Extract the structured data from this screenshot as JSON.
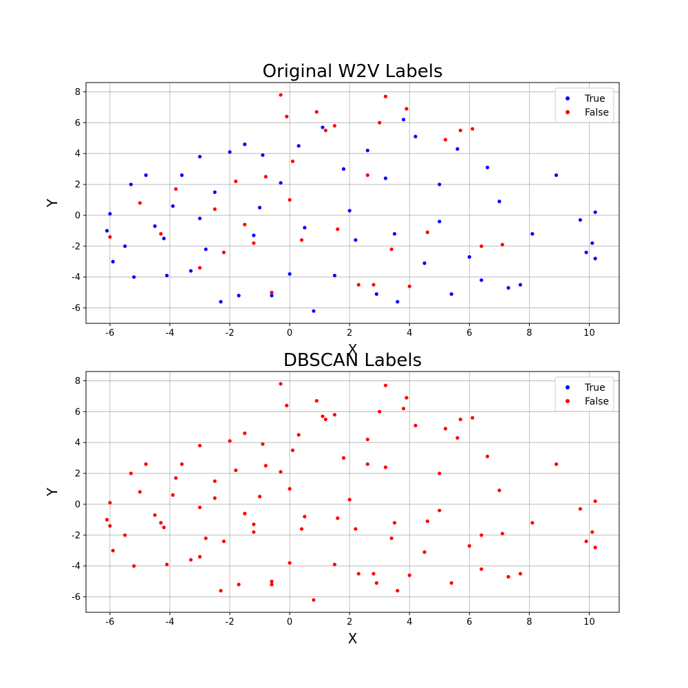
{
  "chart_data": [
    {
      "type": "scatter",
      "title": "Original W2V Labels",
      "xlabel": "X",
      "ylabel": "Y",
      "xlim": [
        -6.8,
        11.0
      ],
      "ylim": [
        -7.0,
        8.6
      ],
      "xticks": [
        -6,
        -4,
        -2,
        0,
        2,
        4,
        6,
        8,
        10
      ],
      "yticks": [
        -6,
        -4,
        -2,
        0,
        2,
        4,
        6,
        8
      ],
      "grid": true,
      "legend_position": "upper right",
      "series": [
        {
          "name": "True",
          "color": "#0000ff",
          "points": [
            [
              -6.0,
              0.1
            ],
            [
              -6.1,
              -1.0
            ],
            [
              -5.9,
              -3.0
            ],
            [
              -5.5,
              -2.0
            ],
            [
              -5.3,
              2.0
            ],
            [
              -5.2,
              -4.0
            ],
            [
              -4.8,
              2.6
            ],
            [
              -4.2,
              -1.5
            ],
            [
              -4.1,
              -3.9
            ],
            [
              -3.9,
              0.6
            ],
            [
              -3.6,
              2.6
            ],
            [
              -3.3,
              -3.6
            ],
            [
              -3.0,
              3.8
            ],
            [
              -2.8,
              -2.2
            ],
            [
              -2.5,
              1.5
            ],
            [
              -2.3,
              -5.6
            ],
            [
              -2.0,
              4.1
            ],
            [
              -1.7,
              -5.2
            ],
            [
              -1.5,
              4.6
            ],
            [
              -1.2,
              -1.3
            ],
            [
              -0.9,
              3.9
            ],
            [
              -0.6,
              -5.2
            ],
            [
              -0.3,
              2.1
            ],
            [
              0.0,
              -3.8
            ],
            [
              0.3,
              4.5
            ],
            [
              0.8,
              -6.2
            ],
            [
              1.1,
              5.7
            ],
            [
              1.5,
              -3.9
            ],
            [
              1.8,
              3.0
            ],
            [
              2.2,
              -1.6
            ],
            [
              2.6,
              4.2
            ],
            [
              2.9,
              -5.1
            ],
            [
              3.2,
              2.4
            ],
            [
              3.6,
              -5.6
            ],
            [
              3.8,
              6.2
            ],
            [
              4.2,
              5.1
            ],
            [
              4.5,
              -3.1
            ],
            [
              5.0,
              2.0
            ],
            [
              5.4,
              -5.1
            ],
            [
              5.6,
              4.3
            ],
            [
              6.0,
              -2.7
            ],
            [
              6.4,
              -4.2
            ],
            [
              6.6,
              3.1
            ],
            [
              7.0,
              0.9
            ],
            [
              7.3,
              -4.7
            ],
            [
              7.7,
              -4.5
            ],
            [
              8.1,
              -1.2
            ],
            [
              8.9,
              2.6
            ],
            [
              9.7,
              -0.3
            ],
            [
              9.9,
              -2.4
            ],
            [
              10.1,
              -1.8
            ],
            [
              10.2,
              0.2
            ],
            [
              10.2,
              -2.8
            ],
            [
              -4.5,
              -0.7
            ],
            [
              -3.0,
              -0.2
            ],
            [
              -1.0,
              0.5
            ],
            [
              0.5,
              -0.8
            ],
            [
              2.0,
              0.3
            ],
            [
              3.5,
              -1.2
            ],
            [
              5.0,
              -0.4
            ]
          ]
        },
        {
          "name": "False",
          "color": "#ff0000",
          "points": [
            [
              -6.0,
              -1.4
            ],
            [
              -5.0,
              0.8
            ],
            [
              -4.3,
              -1.2
            ],
            [
              -3.8,
              1.7
            ],
            [
              -3.0,
              -3.4
            ],
            [
              -2.2,
              -2.4
            ],
            [
              -1.8,
              2.2
            ],
            [
              -1.2,
              -1.8
            ],
            [
              -0.8,
              2.5
            ],
            [
              -0.6,
              -5.0
            ],
            [
              -0.3,
              7.8
            ],
            [
              -0.1,
              6.4
            ],
            [
              0.1,
              3.5
            ],
            [
              0.4,
              -1.6
            ],
            [
              0.9,
              6.7
            ],
            [
              1.2,
              5.5
            ],
            [
              1.5,
              5.8
            ],
            [
              2.3,
              -4.5
            ],
            [
              2.8,
              -4.5
            ],
            [
              3.0,
              6.0
            ],
            [
              3.2,
              7.7
            ],
            [
              3.4,
              -2.2
            ],
            [
              3.9,
              6.9
            ],
            [
              4.0,
              -4.6
            ],
            [
              4.6,
              -1.1
            ],
            [
              5.2,
              4.9
            ],
            [
              5.7,
              5.5
            ],
            [
              6.1,
              5.6
            ],
            [
              6.4,
              -2.0
            ],
            [
              7.1,
              -1.9
            ],
            [
              -2.5,
              0.4
            ],
            [
              -1.5,
              -0.6
            ],
            [
              0.0,
              1.0
            ],
            [
              1.6,
              -0.9
            ],
            [
              2.6,
              2.6
            ]
          ]
        }
      ]
    },
    {
      "type": "scatter",
      "title": "DBSCAN Labels",
      "xlabel": "X",
      "ylabel": "Y",
      "xlim": [
        -6.8,
        11.0
      ],
      "ylim": [
        -7.0,
        8.6
      ],
      "xticks": [
        -6,
        -4,
        -2,
        0,
        2,
        4,
        6,
        8,
        10
      ],
      "yticks": [
        -6,
        -4,
        -2,
        0,
        2,
        4,
        6,
        8
      ],
      "grid": true,
      "legend_position": "upper right",
      "series": [
        {
          "name": "True",
          "color": "#0000ff",
          "points": []
        },
        {
          "name": "False",
          "color": "#ff0000",
          "points": [
            [
              -6.0,
              0.1
            ],
            [
              -6.1,
              -1.0
            ],
            [
              -5.9,
              -3.0
            ],
            [
              -5.5,
              -2.0
            ],
            [
              -5.3,
              2.0
            ],
            [
              -5.2,
              -4.0
            ],
            [
              -4.8,
              2.6
            ],
            [
              -4.2,
              -1.5
            ],
            [
              -4.1,
              -3.9
            ],
            [
              -3.9,
              0.6
            ],
            [
              -3.6,
              2.6
            ],
            [
              -3.3,
              -3.6
            ],
            [
              -3.0,
              3.8
            ],
            [
              -2.8,
              -2.2
            ],
            [
              -2.5,
              1.5
            ],
            [
              -2.3,
              -5.6
            ],
            [
              -2.0,
              4.1
            ],
            [
              -1.7,
              -5.2
            ],
            [
              -1.5,
              4.6
            ],
            [
              -1.2,
              -1.3
            ],
            [
              -0.9,
              3.9
            ],
            [
              -0.6,
              -5.2
            ],
            [
              -0.3,
              2.1
            ],
            [
              0.0,
              -3.8
            ],
            [
              0.3,
              4.5
            ],
            [
              0.8,
              -6.2
            ],
            [
              1.1,
              5.7
            ],
            [
              1.5,
              -3.9
            ],
            [
              1.8,
              3.0
            ],
            [
              2.2,
              -1.6
            ],
            [
              2.6,
              4.2
            ],
            [
              2.9,
              -5.1
            ],
            [
              3.2,
              2.4
            ],
            [
              3.6,
              -5.6
            ],
            [
              3.8,
              6.2
            ],
            [
              4.2,
              5.1
            ],
            [
              4.5,
              -3.1
            ],
            [
              5.0,
              2.0
            ],
            [
              5.4,
              -5.1
            ],
            [
              5.6,
              4.3
            ],
            [
              6.0,
              -2.7
            ],
            [
              6.4,
              -4.2
            ],
            [
              6.6,
              3.1
            ],
            [
              7.0,
              0.9
            ],
            [
              7.3,
              -4.7
            ],
            [
              7.7,
              -4.5
            ],
            [
              8.1,
              -1.2
            ],
            [
              8.9,
              2.6
            ],
            [
              9.7,
              -0.3
            ],
            [
              9.9,
              -2.4
            ],
            [
              10.1,
              -1.8
            ],
            [
              10.2,
              0.2
            ],
            [
              10.2,
              -2.8
            ],
            [
              -4.5,
              -0.7
            ],
            [
              -3.0,
              -0.2
            ],
            [
              -1.0,
              0.5
            ],
            [
              0.5,
              -0.8
            ],
            [
              2.0,
              0.3
            ],
            [
              3.5,
              -1.2
            ],
            [
              5.0,
              -0.4
            ],
            [
              -6.0,
              -1.4
            ],
            [
              -5.0,
              0.8
            ],
            [
              -4.3,
              -1.2
            ],
            [
              -3.8,
              1.7
            ],
            [
              -3.0,
              -3.4
            ],
            [
              -2.2,
              -2.4
            ],
            [
              -1.8,
              2.2
            ],
            [
              -1.2,
              -1.8
            ],
            [
              -0.8,
              2.5
            ],
            [
              -0.6,
              -5.0
            ],
            [
              -0.3,
              7.8
            ],
            [
              -0.1,
              6.4
            ],
            [
              0.1,
              3.5
            ],
            [
              0.4,
              -1.6
            ],
            [
              0.9,
              6.7
            ],
            [
              1.2,
              5.5
            ],
            [
              1.5,
              5.8
            ],
            [
              2.3,
              -4.5
            ],
            [
              2.8,
              -4.5
            ],
            [
              3.0,
              6.0
            ],
            [
              3.2,
              7.7
            ],
            [
              3.4,
              -2.2
            ],
            [
              3.9,
              6.9
            ],
            [
              4.0,
              -4.6
            ],
            [
              4.6,
              -1.1
            ],
            [
              5.2,
              4.9
            ],
            [
              5.7,
              5.5
            ],
            [
              6.1,
              5.6
            ],
            [
              6.4,
              -2.0
            ],
            [
              7.1,
              -1.9
            ],
            [
              -2.5,
              0.4
            ],
            [
              -1.5,
              -0.6
            ],
            [
              0.0,
              1.0
            ],
            [
              1.6,
              -0.9
            ],
            [
              2.6,
              2.6
            ]
          ]
        }
      ]
    }
  ]
}
